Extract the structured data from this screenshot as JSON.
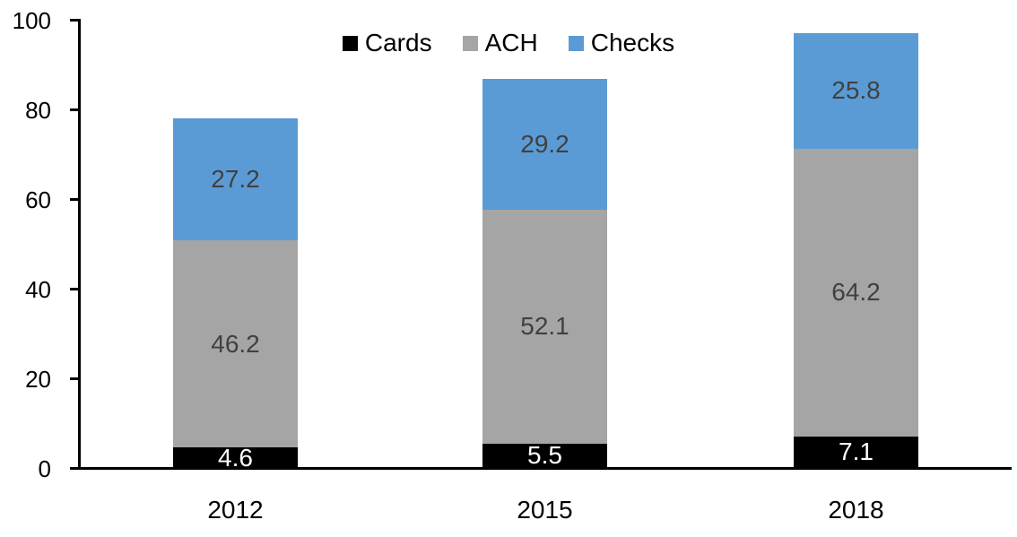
{
  "chart_data": {
    "type": "bar",
    "stacked": true,
    "title": "",
    "xlabel": "",
    "ylabel": "",
    "categories": [
      "2012",
      "2015",
      "2018"
    ],
    "series": [
      {
        "name": "Cards",
        "color": "#000000",
        "label_color": "#ffffff",
        "values": [
          4.6,
          5.5,
          7.1
        ]
      },
      {
        "name": "ACH",
        "color": "#a5a5a5",
        "label_color": "#404040",
        "values": [
          46.2,
          52.1,
          64.2
        ]
      },
      {
        "name": "Checks",
        "color": "#5b9bd5",
        "label_color": "#404040",
        "values": [
          27.2,
          29.2,
          25.8
        ]
      }
    ],
    "y_axis": {
      "min": 0,
      "max": 100,
      "tick_interval": 20,
      "ticks": [
        0,
        20,
        40,
        60,
        80,
        100
      ]
    },
    "legend": {
      "position": "top-center",
      "entries": [
        "Cards",
        "ACH",
        "Checks"
      ]
    },
    "grid": false,
    "axis_color": "#000000"
  }
}
